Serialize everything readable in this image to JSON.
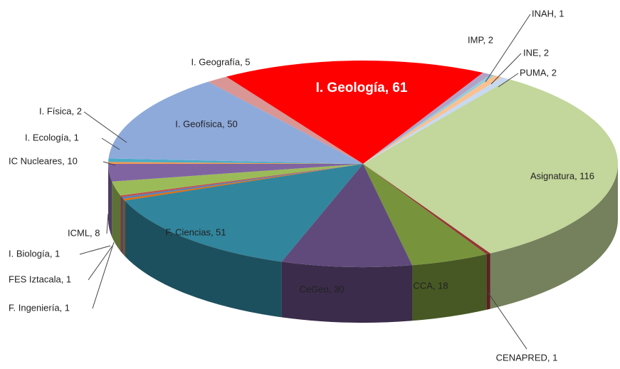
{
  "chart_data": {
    "type": "pie3d",
    "value_labels": [
      "Asignatura, 116",
      "CENAPRED, 1",
      "CCA, 18",
      "CeGeo, 30",
      "F. Ciencias, 51",
      "F. Ingeniería, 1",
      "FES Iztacala, 1",
      "I. Biología, 1",
      "ICML, 8",
      "IC Nucleares, 10",
      "I. Ecología, 1",
      "I. Física, 2",
      "I. Geofísica, 50",
      "I. Geografía, 5",
      "I. Geología, 61",
      "IMP, 2",
      "INAH, 1",
      "INE, 2",
      "PUMA, 2"
    ],
    "values": [
      116,
      1,
      18,
      30,
      51,
      1,
      1,
      1,
      8,
      10,
      1,
      2,
      50,
      5,
      61,
      2,
      1,
      2,
      2
    ],
    "colors": [
      "#c3d69b",
      "#953735",
      "#77933c",
      "#604a7b",
      "#31859c",
      "#e46c0a",
      "#4f81bd",
      "#c0504d",
      "#9bbb59",
      "#8064a2",
      "#f79646",
      "#4bacc6",
      "#8eaadb",
      "#d99694",
      "#ff0000",
      "#b3a2c7",
      "#93cddd",
      "#fac090",
      "#c6d9f1"
    ]
  }
}
